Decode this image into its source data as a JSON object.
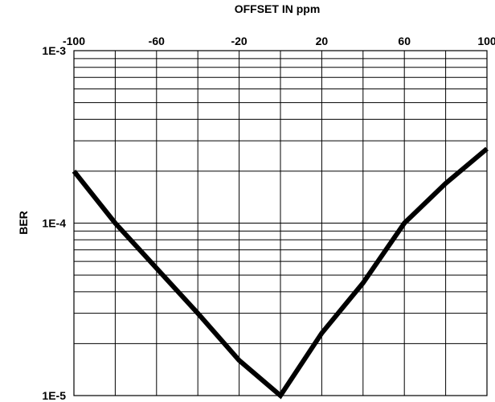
{
  "chart_data": {
    "type": "line",
    "title": "",
    "xlabel": "OFFSET IN ppm",
    "ylabel": "BER",
    "xlim": [
      -100,
      100
    ],
    "ylim": [
      1e-05,
      0.001
    ],
    "y_scale": "log",
    "x_axis_position": "top",
    "grid": true,
    "x_tick_labels": [
      "-100",
      "-60",
      "-20",
      "20",
      "60",
      "100"
    ],
    "y_tick_labels": [
      "1E-3",
      "1E-4",
      "1E-5"
    ],
    "series": [
      {
        "x": [
          -100,
          -80,
          -40,
          -20,
          0,
          20,
          40,
          60,
          80,
          100
        ],
        "y": [
          0.0002,
          0.0001,
          3e-05,
          1.6e-05,
          1e-05,
          2.3e-05,
          4.5e-05,
          0.0001,
          0.00017,
          0.00027
        ]
      }
    ],
    "colors": {
      "line": "#000000",
      "grid": "#000000"
    }
  }
}
